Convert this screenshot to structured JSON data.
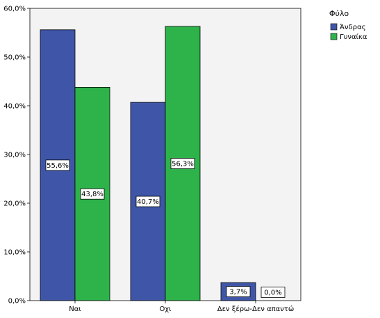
{
  "chart_data": {
    "type": "bar",
    "categories": [
      "Ναι",
      "Οχι",
      "Δεν ξέρω-Δεν απαντώ"
    ],
    "series": [
      {
        "name": "Άνδρας",
        "values": [
          55.6,
          40.7,
          3.7
        ],
        "labels": [
          "55,6%",
          "40,7%",
          "3,7%"
        ],
        "color": "#3f56a8"
      },
      {
        "name": "Γυναίκα",
        "values": [
          43.8,
          56.3,
          0.0
        ],
        "labels": [
          "43,8%",
          "56,3%",
          "0,0%"
        ],
        "color": "#2db34a"
      }
    ],
    "ylim": [
      0,
      60
    ],
    "yticks": [
      0,
      10,
      20,
      30,
      40,
      50,
      60
    ],
    "ytick_labels": [
      "0,0%",
      "10,0%",
      "20,0%",
      "30,0%",
      "40,0%",
      "50,0%",
      "60,0%"
    ],
    "legend": {
      "title": "Φύλο",
      "position": "top-right"
    },
    "grid": false,
    "title": "",
    "xlabel": "",
    "ylabel": ""
  }
}
